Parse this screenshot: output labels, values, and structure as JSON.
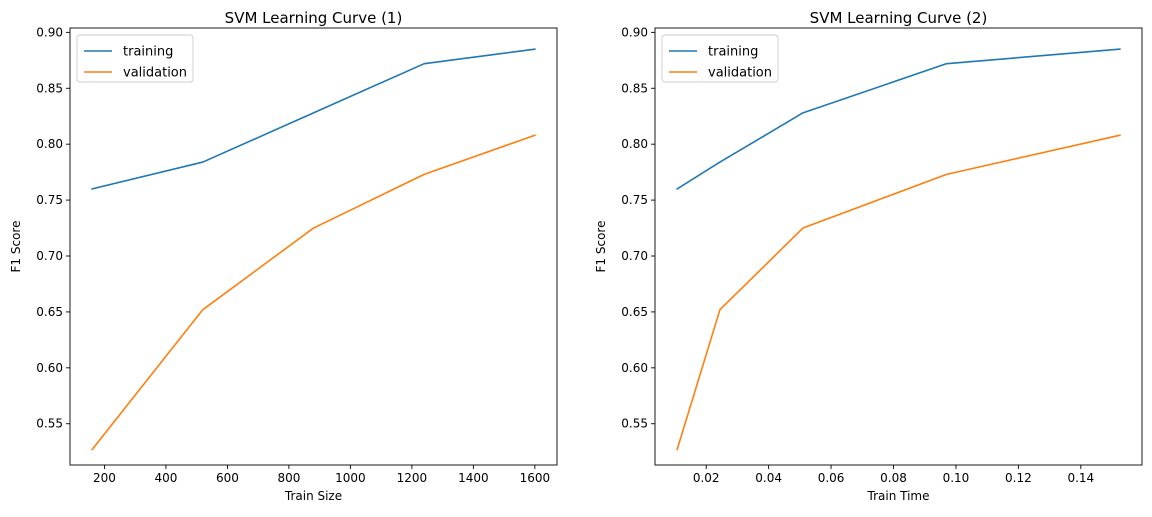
{
  "chart_data": [
    {
      "type": "line",
      "title": "SVM Learning Curve (1)",
      "xlabel": "Train Size",
      "ylabel": "F1 Score",
      "xlim": [
        88,
        1672
      ],
      "ylim": [
        0.5131,
        0.9039
      ],
      "xticks": [
        200,
        400,
        600,
        800,
        1000,
        1200,
        1400,
        1600
      ],
      "xtick_labels": [
        "200",
        "400",
        "600",
        "800",
        "1000",
        "1200",
        "1400",
        "1600"
      ],
      "yticks": [
        0.55,
        0.6,
        0.65,
        0.7,
        0.75,
        0.8,
        0.85,
        0.9
      ],
      "ytick_labels": [
        "0.55",
        "0.60",
        "0.65",
        "0.70",
        "0.75",
        "0.80",
        "0.85",
        "0.90"
      ],
      "legend_position": "top-left",
      "grid": false,
      "x": [
        160,
        520,
        880,
        1240,
        1600
      ],
      "series": [
        {
          "name": "training",
          "color": "#1f77b4",
          "values": [
            0.76,
            0.784,
            0.828,
            0.872,
            0.885
          ]
        },
        {
          "name": "validation",
          "color": "#ff7f0e",
          "values": [
            0.527,
            0.652,
            0.725,
            0.773,
            0.808
          ]
        }
      ]
    },
    {
      "type": "line",
      "title": "SVM Learning Curve (2)",
      "xlabel": "Train Time",
      "ylabel": "F1 Score",
      "xlim": [
        0.0036,
        0.1596
      ],
      "ylim": [
        0.5131,
        0.9039
      ],
      "xticks": [
        0.02,
        0.04,
        0.06,
        0.08,
        0.1,
        0.12,
        0.14
      ],
      "xtick_labels": [
        "0.02",
        "0.04",
        "0.06",
        "0.08",
        "0.10",
        "0.12",
        "0.14"
      ],
      "yticks": [
        0.55,
        0.6,
        0.65,
        0.7,
        0.75,
        0.8,
        0.85,
        0.9
      ],
      "ytick_labels": [
        "0.55",
        "0.60",
        "0.65",
        "0.70",
        "0.75",
        "0.80",
        "0.85",
        "0.90"
      ],
      "legend_position": "top-left",
      "grid": false,
      "x": [
        0.0107,
        0.0244,
        0.051,
        0.097,
        0.1525
      ],
      "series": [
        {
          "name": "training",
          "color": "#1f77b4",
          "values": [
            0.76,
            0.784,
            0.828,
            0.872,
            0.885
          ]
        },
        {
          "name": "validation",
          "color": "#ff7f0e",
          "values": [
            0.527,
            0.652,
            0.725,
            0.773,
            0.808
          ]
        }
      ]
    }
  ]
}
